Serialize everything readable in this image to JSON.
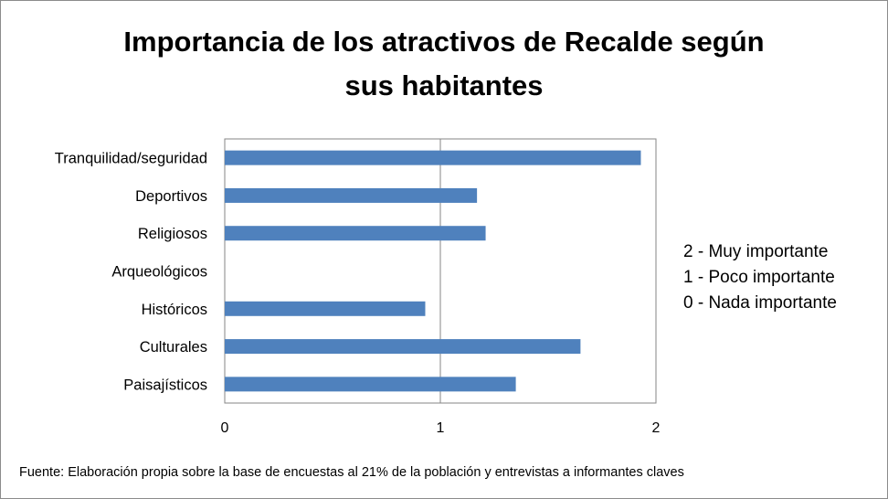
{
  "chart_data": {
    "type": "bar",
    "orientation": "horizontal",
    "title_lines": [
      "Importancia de los atractivos de Recalde según",
      "sus habitantes"
    ],
    "categories": [
      "Tranquilidad/seguridad",
      "Deportivos",
      "Religiosos",
      "Arqueológicos",
      "Históricos",
      "Culturales",
      "Paisajísticos"
    ],
    "values": [
      1.93,
      1.17,
      1.21,
      0,
      0.93,
      1.65,
      1.35
    ],
    "xlim": [
      0,
      2
    ],
    "xticks": [
      "0",
      "1",
      "2"
    ],
    "grid": true,
    "bar_color": "#4f81bd",
    "scale_notes": [
      "2 - Muy importante",
      "1 - Poco importante",
      "0 - Nada importante"
    ],
    "source": "Fuente: Elaboración propia sobre la base de encuestas al 21%  de la población y entrevistas a informantes claves"
  }
}
